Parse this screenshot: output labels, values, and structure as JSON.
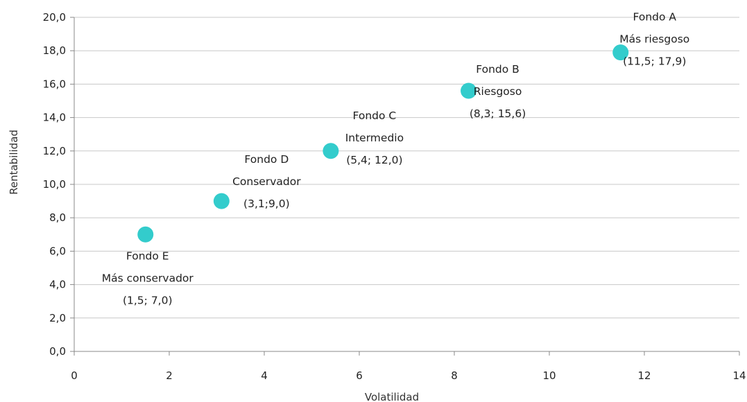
{
  "chart_data": {
    "type": "scatter",
    "title": "",
    "xlabel": "Volatilidad",
    "ylabel": "Rentabilidad",
    "xlim": [
      0,
      14
    ],
    "ylim": [
      0,
      20
    ],
    "x_ticks": [
      "0",
      "2",
      "4",
      "6",
      "8",
      "10",
      "12",
      "14"
    ],
    "y_ticks": [
      "0,0",
      "2,0",
      "4,0",
      "6,0",
      "8,0",
      "10,0",
      "12,0",
      "14,0",
      "16,0",
      "18,0",
      "20,0"
    ],
    "grid": "horizontal",
    "marker_color": "#33CCCC",
    "points": [
      {
        "x": 11.5,
        "y": 17.9,
        "label": [
          "Fondo A",
          "Más riesgoso",
          "(11,5; 17,9)"
        ]
      },
      {
        "x": 8.3,
        "y": 15.6,
        "label": [
          "Fondo B",
          "Riesgoso",
          "(8,3; 15,6)"
        ]
      },
      {
        "x": 5.4,
        "y": 12.0,
        "label": [
          "Fondo C",
          "Intermedio",
          "(5,4; 12,0)"
        ]
      },
      {
        "x": 3.1,
        "y": 9.0,
        "label": [
          "Fondo D",
          "Conservador",
          "(3,1;9,0)"
        ]
      },
      {
        "x": 1.5,
        "y": 7.0,
        "label": [
          "Fondo E",
          "Más conservador",
          "(1,5; 7,0)"
        ]
      }
    ]
  }
}
